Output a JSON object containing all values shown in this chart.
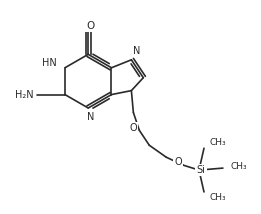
{
  "bg_color": "#ffffff",
  "line_color": "#2a2a2a",
  "line_width": 1.2,
  "font_size": 7.0,
  "fig_width": 2.61,
  "fig_height": 2.14,
  "dpi": 100,
  "xlim": [
    0,
    261
  ],
  "ylim": [
    0,
    214
  ]
}
